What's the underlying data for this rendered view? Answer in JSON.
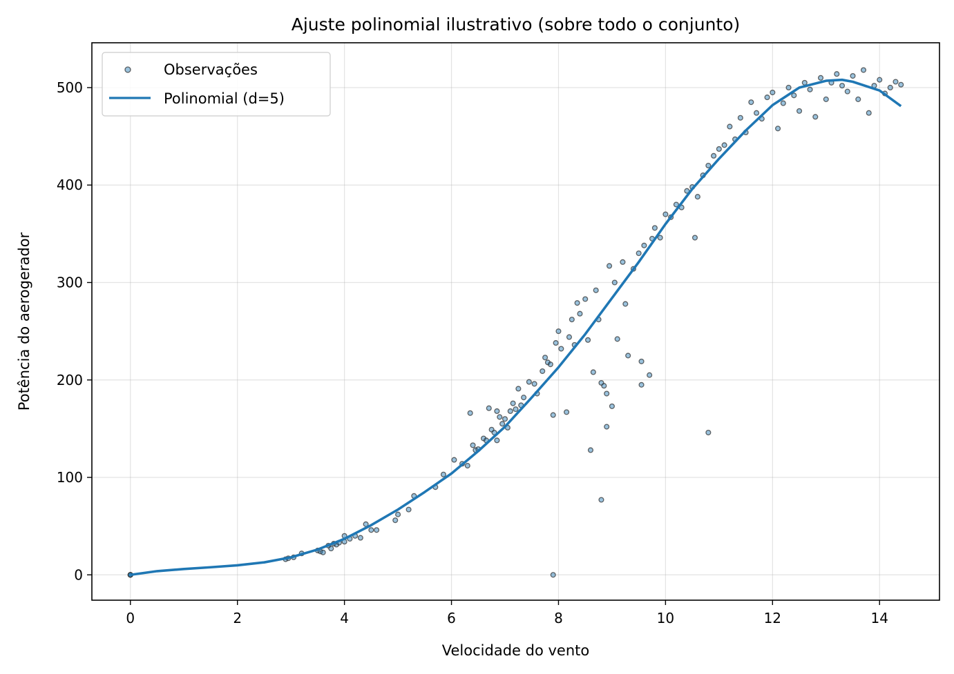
{
  "chart_data": {
    "type": "scatter",
    "title": "Ajuste polinomial ilustrativo (sobre todo o conjunto)",
    "xlabel": "Velocidade do vento",
    "ylabel": "Potência do aerogerador",
    "xlim": [
      -0.72,
      15.12
    ],
    "ylim": [
      -26,
      546
    ],
    "xticks": [
      0,
      2,
      4,
      6,
      8,
      10,
      12,
      14
    ],
    "yticks": [
      0,
      100,
      200,
      300,
      400,
      500
    ],
    "grid": true,
    "legend_position": "top-left",
    "legend": [
      {
        "label": "Observações",
        "marker": "circle"
      },
      {
        "label": "Polinomial (d=5)",
        "marker": "line"
      }
    ],
    "series": [
      {
        "name": "Observações",
        "kind": "scatter",
        "color": "#1f77b4",
        "edge_color": "#333333",
        "points": [
          [
            0,
            0
          ],
          [
            0,
            0
          ],
          [
            0,
            0
          ],
          [
            0,
            0
          ],
          [
            2.9,
            16
          ],
          [
            2.95,
            17
          ],
          [
            3.05,
            18
          ],
          [
            3.2,
            22
          ],
          [
            3.5,
            25
          ],
          [
            3.55,
            24
          ],
          [
            3.6,
            23
          ],
          [
            3.7,
            30
          ],
          [
            3.75,
            27
          ],
          [
            3.8,
            32
          ],
          [
            3.85,
            31
          ],
          [
            3.9,
            33
          ],
          [
            4.0,
            34
          ],
          [
            4.0,
            40
          ],
          [
            4.1,
            37
          ],
          [
            4.2,
            40
          ],
          [
            4.3,
            38
          ],
          [
            4.4,
            52
          ],
          [
            4.5,
            46
          ],
          [
            4.6,
            46
          ],
          [
            4.95,
            56
          ],
          [
            5.0,
            62
          ],
          [
            5.2,
            67
          ],
          [
            5.3,
            81
          ],
          [
            5.7,
            90
          ],
          [
            5.85,
            103
          ],
          [
            6.05,
            118
          ],
          [
            6.2,
            114
          ],
          [
            6.3,
            112
          ],
          [
            6.35,
            166
          ],
          [
            6.4,
            133
          ],
          [
            6.45,
            128
          ],
          [
            6.5,
            129
          ],
          [
            6.6,
            140
          ],
          [
            6.65,
            138
          ],
          [
            6.7,
            171
          ],
          [
            6.75,
            149
          ],
          [
            6.8,
            146
          ],
          [
            6.85,
            168
          ],
          [
            6.85,
            138
          ],
          [
            6.9,
            162
          ],
          [
            6.95,
            155
          ],
          [
            7.0,
            160
          ],
          [
            7.05,
            151
          ],
          [
            7.1,
            168
          ],
          [
            7.15,
            176
          ],
          [
            7.2,
            170
          ],
          [
            7.25,
            191
          ],
          [
            7.3,
            174
          ],
          [
            7.35,
            182
          ],
          [
            7.45,
            198
          ],
          [
            7.55,
            196
          ],
          [
            7.6,
            186
          ],
          [
            7.7,
            209
          ],
          [
            7.75,
            223
          ],
          [
            7.8,
            218
          ],
          [
            7.85,
            216
          ],
          [
            7.9,
            164
          ],
          [
            7.9,
            0
          ],
          [
            7.95,
            238
          ],
          [
            8.0,
            250
          ],
          [
            8.05,
            232
          ],
          [
            8.15,
            167
          ],
          [
            8.2,
            244
          ],
          [
            8.25,
            262
          ],
          [
            8.3,
            236
          ],
          [
            8.35,
            279
          ],
          [
            8.4,
            268
          ],
          [
            8.5,
            283
          ],
          [
            8.55,
            241
          ],
          [
            8.6,
            128
          ],
          [
            8.65,
            208
          ],
          [
            8.7,
            292
          ],
          [
            8.75,
            262
          ],
          [
            8.8,
            197
          ],
          [
            8.8,
            77
          ],
          [
            8.85,
            194
          ],
          [
            8.9,
            152
          ],
          [
            8.9,
            186
          ],
          [
            8.95,
            317
          ],
          [
            9.0,
            173
          ],
          [
            9.05,
            300
          ],
          [
            9.1,
            242
          ],
          [
            9.2,
            321
          ],
          [
            9.25,
            278
          ],
          [
            9.3,
            225
          ],
          [
            9.4,
            314
          ],
          [
            9.5,
            330
          ],
          [
            9.55,
            219
          ],
          [
            9.55,
            195
          ],
          [
            9.6,
            338
          ],
          [
            9.7,
            205
          ],
          [
            9.75,
            345
          ],
          [
            9.8,
            356
          ],
          [
            9.9,
            346
          ],
          [
            10.0,
            370
          ],
          [
            10.1,
            367
          ],
          [
            10.2,
            380
          ],
          [
            10.3,
            377
          ],
          [
            10.4,
            394
          ],
          [
            10.5,
            398
          ],
          [
            10.55,
            346
          ],
          [
            10.6,
            388
          ],
          [
            10.7,
            410
          ],
          [
            10.8,
            146
          ],
          [
            10.8,
            420
          ],
          [
            10.9,
            430
          ],
          [
            11.0,
            437
          ],
          [
            11.1,
            441
          ],
          [
            11.2,
            460
          ],
          [
            11.3,
            447
          ],
          [
            11.4,
            469
          ],
          [
            11.5,
            454
          ],
          [
            11.6,
            485
          ],
          [
            11.7,
            474
          ],
          [
            11.8,
            468
          ],
          [
            11.9,
            490
          ],
          [
            12.0,
            495
          ],
          [
            12.1,
            458
          ],
          [
            12.2,
            484
          ],
          [
            12.3,
            500
          ],
          [
            12.4,
            492
          ],
          [
            12.5,
            476
          ],
          [
            12.6,
            505
          ],
          [
            12.7,
            498
          ],
          [
            12.8,
            470
          ],
          [
            12.9,
            510
          ],
          [
            13.0,
            488
          ],
          [
            13.1,
            505
          ],
          [
            13.2,
            514
          ],
          [
            13.3,
            502
          ],
          [
            13.4,
            496
          ],
          [
            13.5,
            512
          ],
          [
            13.6,
            488
          ],
          [
            13.7,
            518
          ],
          [
            13.8,
            474
          ],
          [
            13.9,
            502
          ],
          [
            14.0,
            508
          ],
          [
            14.1,
            494
          ],
          [
            14.2,
            500
          ],
          [
            14.3,
            506
          ],
          [
            14.4,
            503
          ]
        ]
      },
      {
        "name": "Polinomial (d=5)",
        "kind": "line",
        "color": "#1f77b4",
        "points": [
          [
            0,
            0
          ],
          [
            0.5,
            3.8
          ],
          [
            1.0,
            6.0
          ],
          [
            1.5,
            7.8
          ],
          [
            2.0,
            9.8
          ],
          [
            2.5,
            12.8
          ],
          [
            3.0,
            18
          ],
          [
            3.5,
            26
          ],
          [
            4.0,
            37
          ],
          [
            4.5,
            51
          ],
          [
            5.0,
            67
          ],
          [
            5.5,
            85
          ],
          [
            6.0,
            104
          ],
          [
            6.5,
            127
          ],
          [
            7.0,
            152
          ],
          [
            7.5,
            182
          ],
          [
            8.0,
            213
          ],
          [
            8.5,
            247
          ],
          [
            9.0,
            284
          ],
          [
            9.5,
            321
          ],
          [
            10.0,
            360
          ],
          [
            10.5,
            396
          ],
          [
            11.0,
            427
          ],
          [
            11.5,
            456
          ],
          [
            12.0,
            482
          ],
          [
            12.5,
            500
          ],
          [
            13.0,
            507
          ],
          [
            13.3,
            508
          ],
          [
            13.5,
            506
          ],
          [
            14.0,
            497
          ],
          [
            14.4,
            481
          ]
        ]
      }
    ]
  }
}
